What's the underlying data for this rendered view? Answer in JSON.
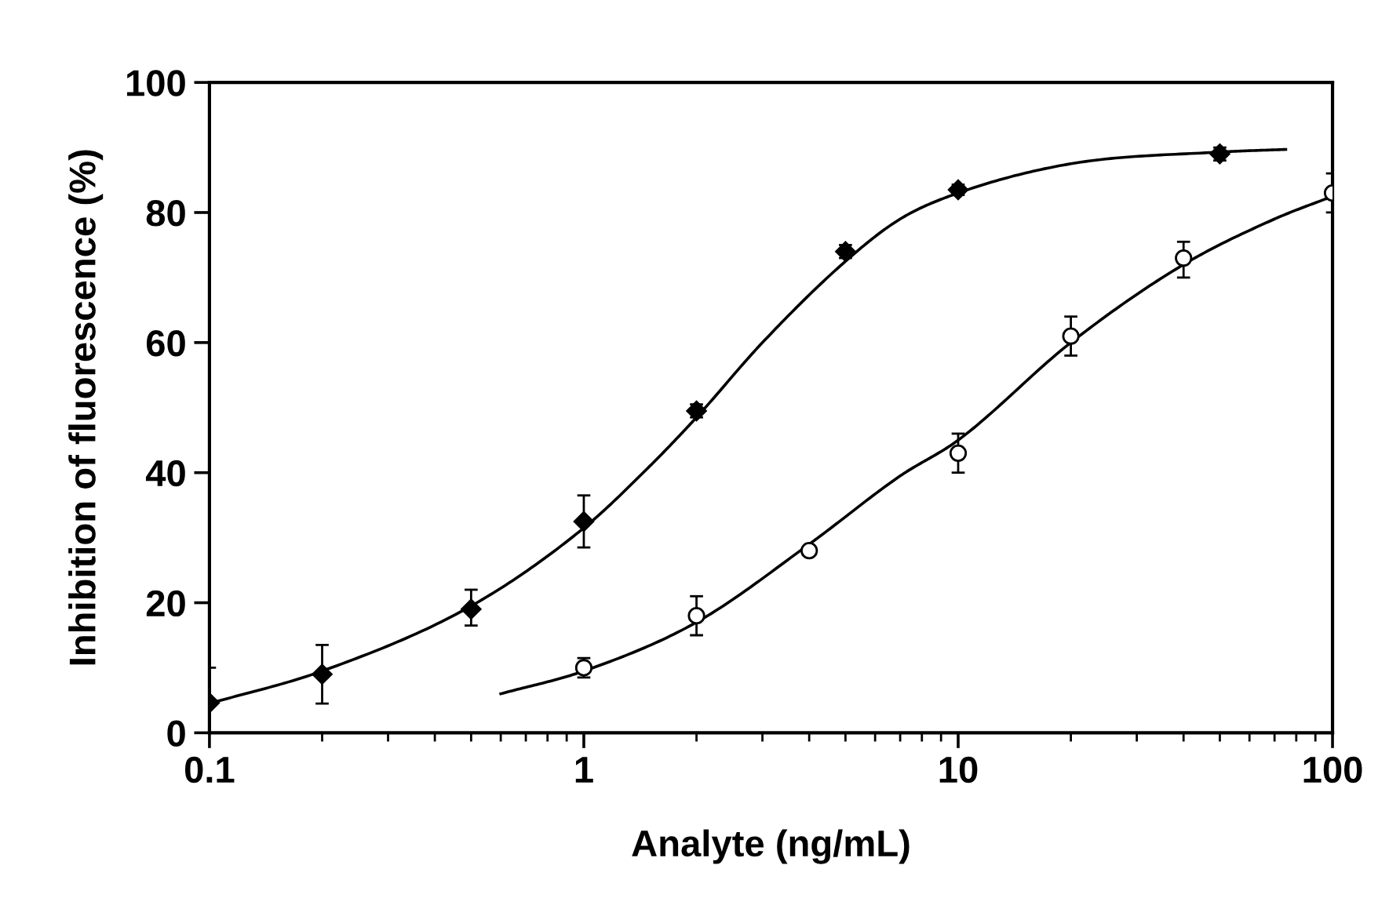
{
  "chart_data": {
    "type": "scatter",
    "xlabel": "Analyte (ng/mL)",
    "ylabel": "Inhibition of fluorescence (%)",
    "log": "x",
    "xlim": [
      0.1,
      100
    ],
    "ylim": [
      0,
      100
    ],
    "xticks": [
      0.1,
      1,
      10,
      100
    ],
    "yticks": [
      0,
      20,
      40,
      60,
      80,
      100
    ],
    "grid": false,
    "series": [
      {
        "type": "line",
        "color": "#000000",
        "marker": "none",
        "line_style": "solid",
        "x": [
          0.1,
          0.2,
          0.5,
          1,
          1.5,
          2,
          3,
          5,
          7,
          10,
          20,
          50,
          75
        ],
        "values": [
          4.5,
          9.5,
          19.5,
          31.5,
          41,
          48.5,
          60,
          72.5,
          79,
          83,
          87.5,
          89.3,
          89.7
        ]
      },
      {
        "type": "line",
        "color": "#000000",
        "marker": "none",
        "line_style": "solid",
        "x": [
          0.6,
          1,
          2,
          4,
          7,
          10,
          20,
          40,
          70,
          100
        ],
        "values": [
          6,
          9.5,
          17,
          29,
          39.5,
          45,
          60,
          72,
          79,
          82.5
        ]
      },
      {
        "color": "#000000",
        "marker": "diamond",
        "x": [
          0.1,
          0.2,
          0.5,
          1,
          2,
          5,
          10,
          50
        ],
        "values": [
          4.6,
          9,
          19,
          32.5,
          49.5,
          74,
          83.5,
          89
        ],
        "errors": [
          [
            0,
            10
          ],
          [
            4.5,
            13.5
          ],
          [
            16.5,
            22
          ],
          [
            28.5,
            36.5
          ],
          [
            48.5,
            50.5
          ],
          [
            73,
            75
          ],
          [
            82.7,
            84.3
          ],
          [
            88,
            90
          ]
        ]
      },
      {
        "color": "#000000",
        "marker": "circle",
        "x": [
          1,
          2,
          4,
          10,
          20,
          40,
          100
        ],
        "values": [
          10,
          18,
          28,
          43,
          61,
          73,
          83
        ],
        "errors": [
          [
            8.5,
            11.5
          ],
          [
            15,
            21
          ],
          [
            27.5,
            28.5
          ],
          [
            40,
            46
          ],
          [
            58,
            64
          ],
          [
            70,
            75.5
          ],
          [
            80,
            86
          ]
        ]
      }
    ]
  }
}
